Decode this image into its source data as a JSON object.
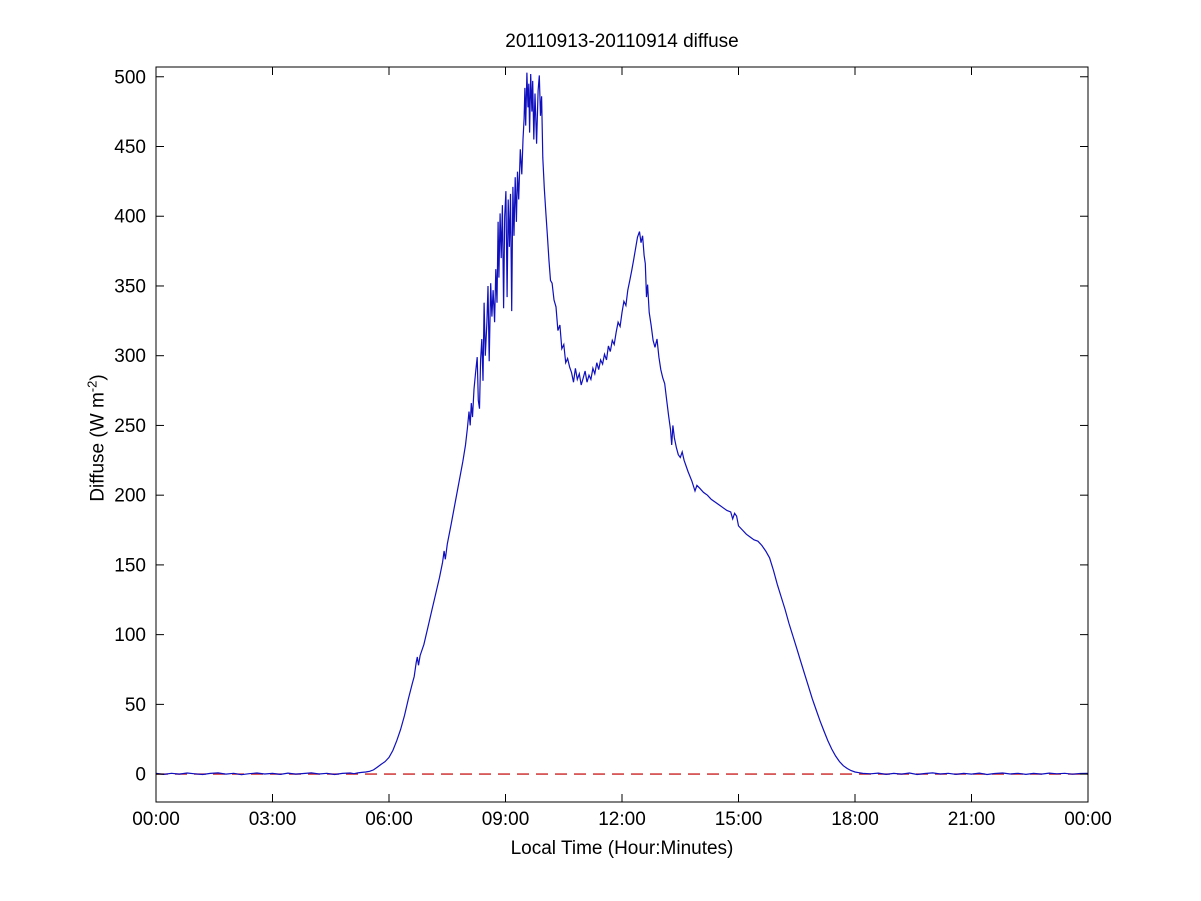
{
  "figure": {
    "title": "20110913-20110914 diffuse",
    "x_label": "Local Time (Hour:Minutes)",
    "y_label_prefix": "Diffuse (W m",
    "y_label_sup": "-2",
    "y_label_suffix": ")"
  },
  "colors": {
    "data_line": "#0f0fbe",
    "zero_line": "#cc2222",
    "axis": "#000000",
    "background": "#ffffff"
  },
  "chart_data": {
    "type": "line",
    "title": "20110913-20110914 diffuse",
    "xlabel": "Local Time (Hour:Minutes)",
    "ylabel": "Diffuse (W m^-2)",
    "xlim": [
      0,
      24
    ],
    "ylim": [
      -20,
      507
    ],
    "grid": false,
    "legend": null,
    "x_tick_hours": [
      0,
      3,
      6,
      9,
      12,
      15,
      18,
      21,
      24
    ],
    "x_tick_labels": [
      "00:00",
      "03:00",
      "06:00",
      "09:00",
      "12:00",
      "15:00",
      "18:00",
      "21:00",
      "00:00"
    ],
    "y_ticks": [
      0,
      50,
      100,
      150,
      200,
      250,
      300,
      350,
      400,
      450,
      500
    ],
    "series": [
      {
        "name": "zero-reference",
        "color": "#cc2222",
        "style": "dashed",
        "points": [
          [
            0,
            0
          ],
          [
            24,
            0
          ]
        ]
      },
      {
        "name": "diffuse-irradiance",
        "color": "#0f0fbe",
        "style": "solid",
        "points": [
          [
            0.0,
            0.5
          ],
          [
            0.2,
            -0.2
          ],
          [
            0.4,
            0.6
          ],
          [
            0.6,
            0.0
          ],
          [
            0.8,
            0.8
          ],
          [
            1.0,
            0.2
          ],
          [
            1.2,
            -0.3
          ],
          [
            1.4,
            0.5
          ],
          [
            1.6,
            0.9
          ],
          [
            1.8,
            0.0
          ],
          [
            2.0,
            0.6
          ],
          [
            2.2,
            -0.4
          ],
          [
            2.4,
            0.3
          ],
          [
            2.6,
            0.8
          ],
          [
            2.8,
            0.1
          ],
          [
            3.0,
            0.5
          ],
          [
            3.2,
            -0.2
          ],
          [
            3.4,
            0.7
          ],
          [
            3.6,
            0.0
          ],
          [
            3.8,
            0.4
          ],
          [
            4.0,
            0.9
          ],
          [
            4.2,
            0.1
          ],
          [
            4.4,
            0.6
          ],
          [
            4.6,
            -0.3
          ],
          [
            4.8,
            0.5
          ],
          [
            5.0,
            0.8
          ],
          [
            5.1,
            0.3
          ],
          [
            5.2,
            0.9
          ],
          [
            5.3,
            1.2
          ],
          [
            5.4,
            1.5
          ],
          [
            5.5,
            2
          ],
          [
            5.6,
            3
          ],
          [
            5.7,
            5
          ],
          [
            5.8,
            7
          ],
          [
            5.9,
            9
          ],
          [
            6.0,
            12
          ],
          [
            6.1,
            17
          ],
          [
            6.2,
            24
          ],
          [
            6.3,
            32
          ],
          [
            6.4,
            42
          ],
          [
            6.5,
            54
          ],
          [
            6.6,
            65
          ],
          [
            6.65,
            70
          ],
          [
            6.7,
            80
          ],
          [
            6.73,
            84
          ],
          [
            6.76,
            78
          ],
          [
            6.8,
            85
          ],
          [
            6.9,
            93
          ],
          [
            7.0,
            105
          ],
          [
            7.1,
            117
          ],
          [
            7.2,
            129
          ],
          [
            7.3,
            141
          ],
          [
            7.38,
            152
          ],
          [
            7.42,
            160
          ],
          [
            7.45,
            154
          ],
          [
            7.5,
            165
          ],
          [
            7.6,
            179
          ],
          [
            7.7,
            194
          ],
          [
            7.8,
            209
          ],
          [
            7.9,
            224
          ],
          [
            7.97,
            236
          ],
          [
            8.02,
            248
          ],
          [
            8.06,
            260
          ],
          [
            8.09,
            250
          ],
          [
            8.12,
            266
          ],
          [
            8.15,
            256
          ],
          [
            8.19,
            276
          ],
          [
            8.23,
            288
          ],
          [
            8.27,
            299
          ],
          [
            8.3,
            268
          ],
          [
            8.33,
            262
          ],
          [
            8.36,
            297
          ],
          [
            8.39,
            312
          ],
          [
            8.42,
            282
          ],
          [
            8.45,
            338
          ],
          [
            8.48,
            300
          ],
          [
            8.52,
            324
          ],
          [
            8.55,
            350
          ],
          [
            8.58,
            296
          ],
          [
            8.62,
            352
          ],
          [
            8.65,
            328
          ],
          [
            8.68,
            347
          ],
          [
            8.72,
            324
          ],
          [
            8.75,
            362
          ],
          [
            8.78,
            338
          ],
          [
            8.81,
            396
          ],
          [
            8.83,
            356
          ],
          [
            8.86,
            402
          ],
          [
            8.89,
            370
          ],
          [
            8.92,
            408
          ],
          [
            8.95,
            334
          ],
          [
            8.98,
            400
          ],
          [
            9.01,
            418
          ],
          [
            9.04,
            342
          ],
          [
            9.07,
            412
          ],
          [
            9.1,
            378
          ],
          [
            9.13,
            416
          ],
          [
            9.16,
            332
          ],
          [
            9.19,
            421
          ],
          [
            9.22,
            386
          ],
          [
            9.25,
            428
          ],
          [
            9.28,
            396
          ],
          [
            9.31,
            432
          ],
          [
            9.34,
            412
          ],
          [
            9.38,
            448
          ],
          [
            9.42,
            430
          ],
          [
            9.45,
            455
          ],
          [
            9.48,
            470
          ],
          [
            9.5,
            492
          ],
          [
            9.52,
            465
          ],
          [
            9.55,
            503
          ],
          [
            9.58,
            478
          ],
          [
            9.6,
            495
          ],
          [
            9.62,
            460
          ],
          [
            9.65,
            502
          ],
          [
            9.68,
            475
          ],
          [
            9.7,
            497
          ],
          [
            9.73,
            455
          ],
          [
            9.76,
            488
          ],
          [
            9.8,
            452
          ],
          [
            9.84,
            490
          ],
          [
            9.87,
            501
          ],
          [
            9.9,
            472
          ],
          [
            9.93,
            486
          ],
          [
            9.96,
            442
          ],
          [
            10.0,
            420
          ],
          [
            10.04,
            402
          ],
          [
            10.08,
            386
          ],
          [
            10.12,
            368
          ],
          [
            10.16,
            354
          ],
          [
            10.2,
            352
          ],
          [
            10.25,
            340
          ],
          [
            10.3,
            335
          ],
          [
            10.35,
            318
          ],
          [
            10.4,
            322
          ],
          [
            10.45,
            305
          ],
          [
            10.5,
            308
          ],
          [
            10.55,
            295
          ],
          [
            10.6,
            298
          ],
          [
            10.65,
            292
          ],
          [
            10.7,
            288
          ],
          [
            10.75,
            281
          ],
          [
            10.8,
            291
          ],
          [
            10.85,
            283
          ],
          [
            10.9,
            287
          ],
          [
            10.95,
            279
          ],
          [
            11.0,
            284
          ],
          [
            11.05,
            289
          ],
          [
            11.1,
            281
          ],
          [
            11.15,
            286
          ],
          [
            11.2,
            283
          ],
          [
            11.25,
            291
          ],
          [
            11.3,
            287
          ],
          [
            11.35,
            295
          ],
          [
            11.4,
            290
          ],
          [
            11.45,
            297
          ],
          [
            11.5,
            294
          ],
          [
            11.55,
            301
          ],
          [
            11.6,
            297
          ],
          [
            11.65,
            307
          ],
          [
            11.7,
            303
          ],
          [
            11.75,
            311
          ],
          [
            11.8,
            308
          ],
          [
            11.85,
            317
          ],
          [
            11.9,
            324
          ],
          [
            11.95,
            321
          ],
          [
            12.0,
            331
          ],
          [
            12.05,
            339
          ],
          [
            12.1,
            336
          ],
          [
            12.15,
            347
          ],
          [
            12.2,
            354
          ],
          [
            12.25,
            361
          ],
          [
            12.3,
            369
          ],
          [
            12.35,
            377
          ],
          [
            12.4,
            385
          ],
          [
            12.45,
            389
          ],
          [
            12.49,
            381
          ],
          [
            12.53,
            386
          ],
          [
            12.57,
            372
          ],
          [
            12.6,
            366
          ],
          [
            12.63,
            342
          ],
          [
            12.66,
            351
          ],
          [
            12.7,
            331
          ],
          [
            12.75,
            322
          ],
          [
            12.8,
            311
          ],
          [
            12.85,
            306
          ],
          [
            12.9,
            312
          ],
          [
            12.95,
            299
          ],
          [
            13.0,
            290
          ],
          [
            13.05,
            284
          ],
          [
            13.1,
            280
          ],
          [
            13.15,
            268
          ],
          [
            13.2,
            257
          ],
          [
            13.25,
            247
          ],
          [
            13.28,
            236
          ],
          [
            13.31,
            250
          ],
          [
            13.35,
            241
          ],
          [
            13.4,
            234
          ],
          [
            13.45,
            229
          ],
          [
            13.5,
            227
          ],
          [
            13.55,
            231
          ],
          [
            13.6,
            225
          ],
          [
            13.7,
            217
          ],
          [
            13.8,
            210
          ],
          [
            13.88,
            203
          ],
          [
            13.93,
            207
          ],
          [
            14.0,
            205
          ],
          [
            14.1,
            202
          ],
          [
            14.2,
            200
          ],
          [
            14.3,
            197
          ],
          [
            14.4,
            195
          ],
          [
            14.5,
            193
          ],
          [
            14.6,
            191
          ],
          [
            14.7,
            189
          ],
          [
            14.8,
            188
          ],
          [
            14.85,
            183
          ],
          [
            14.9,
            187
          ],
          [
            14.95,
            185
          ],
          [
            15.0,
            178
          ],
          [
            15.1,
            175
          ],
          [
            15.2,
            172
          ],
          [
            15.3,
            170
          ],
          [
            15.4,
            168
          ],
          [
            15.5,
            167
          ],
          [
            15.6,
            164
          ],
          [
            15.7,
            160
          ],
          [
            15.8,
            155
          ],
          [
            15.9,
            146
          ],
          [
            16.0,
            136
          ],
          [
            16.1,
            127
          ],
          [
            16.2,
            118
          ],
          [
            16.3,
            108
          ],
          [
            16.4,
            99
          ],
          [
            16.5,
            90
          ],
          [
            16.6,
            81
          ],
          [
            16.7,
            72
          ],
          [
            16.8,
            63
          ],
          [
            16.9,
            54
          ],
          [
            17.0,
            46
          ],
          [
            17.1,
            38
          ],
          [
            17.2,
            31
          ],
          [
            17.3,
            24
          ],
          [
            17.4,
            18
          ],
          [
            17.5,
            13
          ],
          [
            17.6,
            9
          ],
          [
            17.7,
            6
          ],
          [
            17.8,
            4
          ],
          [
            17.9,
            2.5
          ],
          [
            18.0,
            1.5
          ],
          [
            18.1,
            1
          ],
          [
            18.2,
            0.5
          ],
          [
            18.4,
            0.2
          ],
          [
            18.6,
            0.7
          ],
          [
            18.8,
            -0.2
          ],
          [
            19.0,
            0.5
          ],
          [
            19.2,
            0.0
          ],
          [
            19.4,
            0.8
          ],
          [
            19.6,
            -0.3
          ],
          [
            19.8,
            0.4
          ],
          [
            20.0,
            0.9
          ],
          [
            20.2,
            0.1
          ],
          [
            20.4,
            0.6
          ],
          [
            20.6,
            -0.2
          ],
          [
            20.8,
            0.5
          ],
          [
            21.0,
            0.0
          ],
          [
            21.2,
            0.7
          ],
          [
            21.4,
            -0.3
          ],
          [
            21.6,
            0.4
          ],
          [
            21.8,
            0.8
          ],
          [
            22.0,
            0.1
          ],
          [
            22.2,
            0.6
          ],
          [
            22.4,
            -0.2
          ],
          [
            22.6,
            0.5
          ],
          [
            22.8,
            0.0
          ],
          [
            23.0,
            0.7
          ],
          [
            23.2,
            0.2
          ],
          [
            23.4,
            0.6
          ],
          [
            23.6,
            -0.1
          ],
          [
            23.8,
            0.4
          ],
          [
            24.0,
            0.5
          ]
        ]
      }
    ]
  }
}
